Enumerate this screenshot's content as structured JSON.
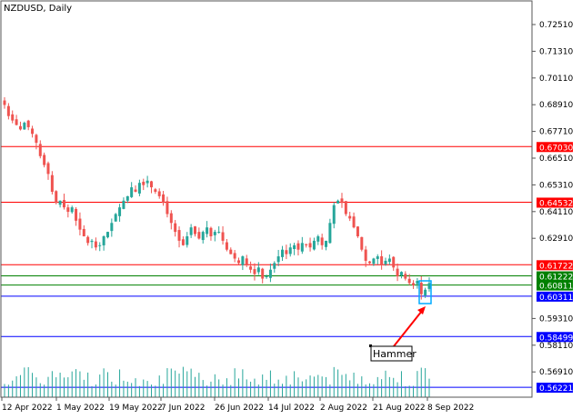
{
  "chart_data": {
    "type": "candlestick",
    "title": "NZDUSD, Daily",
    "symbol": "NZDUSD",
    "timeframe": "Daily",
    "ylim": [
      0.561,
      0.732
    ],
    "y_ticks": [
      "0.72510",
      "0.71310",
      "0.70110",
      "0.68910",
      "0.67710",
      "0.66510",
      "0.65310",
      "0.64110",
      "0.62910",
      "0.59310",
      "0.58110",
      "0.56910"
    ],
    "x_ticks": [
      "12 Apr 2022",
      "1 May 2022",
      "19 May 2022",
      "7 Jun 2022",
      "26 Jun 2022",
      "14 Jul 2022",
      "2 Aug 2022",
      "21 Aug 2022",
      "8 Sep 2022"
    ],
    "closes": [
      0.689,
      0.684,
      0.682,
      0.68,
      0.678,
      0.681,
      0.679,
      0.676,
      0.672,
      0.666,
      0.662,
      0.658,
      0.65,
      0.645,
      0.646,
      0.643,
      0.641,
      0.643,
      0.637,
      0.633,
      0.63,
      0.627,
      0.628,
      0.625,
      0.626,
      0.63,
      0.632,
      0.636,
      0.64,
      0.643,
      0.646,
      0.648,
      0.652,
      0.65,
      0.654,
      0.653,
      0.655,
      0.652,
      0.65,
      0.648,
      0.645,
      0.64,
      0.636,
      0.632,
      0.628,
      0.626,
      0.63,
      0.634,
      0.631,
      0.629,
      0.632,
      0.634,
      0.63,
      0.632,
      0.632,
      0.628,
      0.624,
      0.622,
      0.62,
      0.618,
      0.621,
      0.617,
      0.615,
      0.613,
      0.616,
      0.611,
      0.612,
      0.615,
      0.618,
      0.621,
      0.624,
      0.622,
      0.625,
      0.626,
      0.624,
      0.627,
      0.626,
      0.625,
      0.628,
      0.63,
      0.626,
      0.628,
      0.636,
      0.644,
      0.646,
      0.645,
      0.64,
      0.638,
      0.634,
      0.63,
      0.624,
      0.619,
      0.618,
      0.62,
      0.621,
      0.617,
      0.619,
      0.62,
      0.616,
      0.612,
      0.614,
      0.611,
      0.609,
      0.608,
      0.61,
      0.604,
      0.606,
      0.609
    ],
    "levels": [
      {
        "value": 0.6703,
        "label": "0.67030",
        "color": "#ff0000"
      },
      {
        "value": 0.64532,
        "label": "0.64532",
        "color": "#ff0000"
      },
      {
        "value": 0.61722,
        "label": "0.61722",
        "color": "#ff0000"
      },
      {
        "value": 0.61222,
        "label": "0.61222",
        "color": "#008000"
      },
      {
        "value": 0.60811,
        "label": "0.60811",
        "color": "#008000"
      },
      {
        "value": 0.60311,
        "label": "0.60311",
        "color": "#0000ff"
      },
      {
        "value": 0.58499,
        "label": "0.58499",
        "color": "#0000ff"
      },
      {
        "value": 0.56221,
        "label": "0.56221",
        "color": "#0000ff"
      }
    ],
    "annotation": {
      "text": "Hammer",
      "arrow_color": "#ff0000",
      "highlight_color": "#00aaff"
    },
    "colors": {
      "bull": "#26a69a",
      "bear": "#ef5350",
      "volume": "#26a69a"
    }
  }
}
